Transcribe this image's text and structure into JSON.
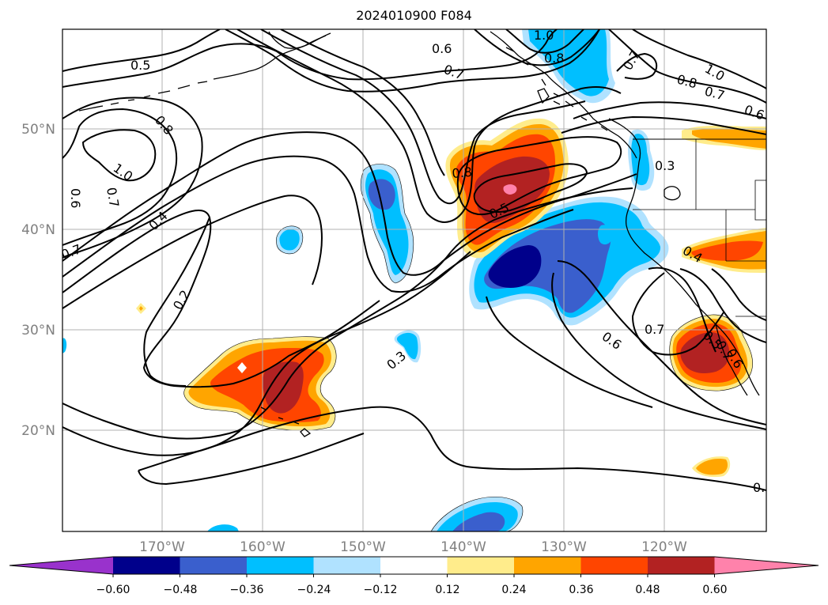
{
  "title": "2024010900 F084",
  "map": {
    "lat_ticks": [
      "50°N",
      "40°N",
      "30°N",
      "20°N"
    ],
    "lon_ticks": [
      "170°W",
      "160°W",
      "150°W",
      "140°W",
      "130°W",
      "120°W"
    ],
    "contour_labels": [
      "0.5",
      "0.6",
      "0.7",
      "1.0",
      "0.8",
      "0.7",
      "1.0",
      "0.8",
      "0.7",
      "0.6",
      "0.8",
      "1.0",
      "0.7",
      "0.6",
      "0.7",
      "0.4",
      "0.2",
      "0.8",
      "0.5",
      "0.3",
      "0.4",
      "0.3",
      "0.7",
      "0.6",
      "0.5",
      "0.7",
      "0.6",
      "0."
    ]
  },
  "colorbar": {
    "ticks": [
      "−0.60",
      "−0.48",
      "−0.36",
      "−0.24",
      "−0.12",
      "0.12",
      "0.24",
      "0.36",
      "0.48",
      "0.60"
    ],
    "colors": [
      "#9932cc",
      "#00008b",
      "#3a5fcd",
      "#00bfff",
      "#b0e2ff",
      "#ffffff",
      "#ffec8b",
      "#ffa500",
      "#ff4500",
      "#b22222",
      "#ff82ab"
    ]
  }
}
